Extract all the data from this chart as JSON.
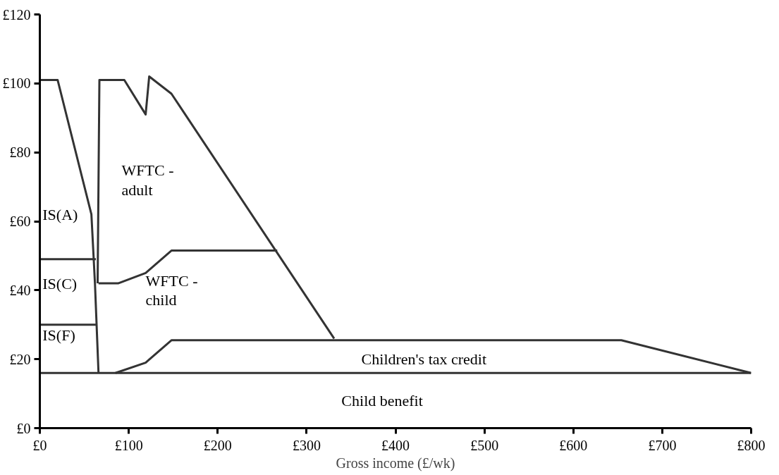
{
  "chart_data": {
    "type": "line",
    "xlabel": "Gross income (£/wk)",
    "xlim": [
      0,
      800
    ],
    "ylim": [
      0,
      120
    ],
    "xticks": [
      {
        "value": 0,
        "label": "£0"
      },
      {
        "value": 100,
        "label": "£100"
      },
      {
        "value": 200,
        "label": "£200"
      },
      {
        "value": 300,
        "label": "£300"
      },
      {
        "value": 400,
        "label": "£400"
      },
      {
        "value": 500,
        "label": "£500"
      },
      {
        "value": 600,
        "label": "£600"
      },
      {
        "value": 700,
        "label": "£700"
      },
      {
        "value": 800,
        "label": "£800"
      }
    ],
    "yticks": [
      {
        "value": 0,
        "label": "£0"
      },
      {
        "value": 20,
        "label": "£20"
      },
      {
        "value": 40,
        "label": "£40"
      },
      {
        "value": 60,
        "label": "£60"
      },
      {
        "value": 80,
        "label": "£80"
      },
      {
        "value": 100,
        "label": "£100"
      },
      {
        "value": 120,
        "label": "£120"
      }
    ],
    "grid": false,
    "marker": "none",
    "line_style": "solid",
    "series": [
      {
        "color": "#333333",
        "x": [
          0,
          20,
          58,
          62,
          66
        ],
        "values": [
          101,
          101,
          62,
          42,
          16
        ]
      },
      {
        "color": "#333333",
        "x": [
          65,
          67,
          95,
          119,
          123,
          148,
          331
        ],
        "values": [
          42,
          101,
          101,
          91,
          102,
          97,
          26
        ]
      },
      {
        "color": "#333333",
        "x": [
          66,
          88,
          119,
          148,
          267
        ],
        "values": [
          42,
          42,
          45,
          51.5,
          51.5
        ]
      },
      {
        "color": "#333333",
        "x": [
          0,
          63
        ],
        "values": [
          49,
          49
        ]
      },
      {
        "color": "#333333",
        "x": [
          0,
          63
        ],
        "values": [
          30,
          30
        ]
      },
      {
        "color": "#333333",
        "x": [
          85,
          119,
          148,
          654,
          800
        ],
        "values": [
          16,
          19,
          25.5,
          25.5,
          16
        ]
      },
      {
        "color": "#333333",
        "x": [
          0,
          800
        ],
        "values": [
          16,
          16
        ]
      }
    ],
    "annotations": [
      "IS(A)",
      "IS(C)",
      "IS(F)",
      "WFTC -\nadult",
      "WFTC -\nchild",
      "Children's tax credit",
      "Child benefit"
    ]
  }
}
